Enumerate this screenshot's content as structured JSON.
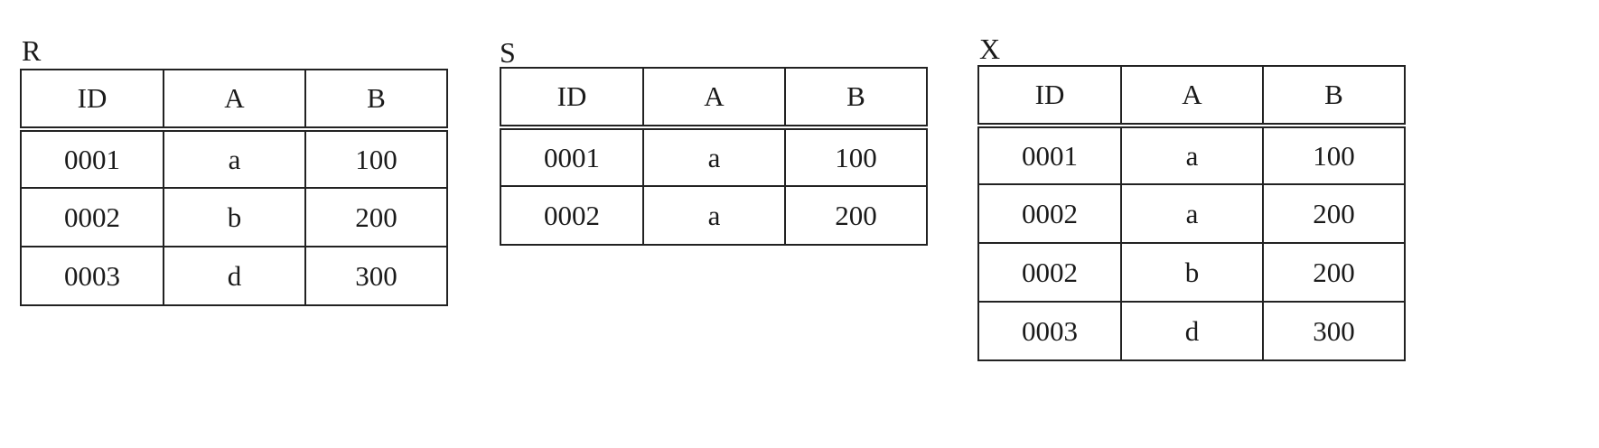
{
  "tables": [
    {
      "name": "R",
      "headers": [
        "ID",
        "A",
        "B"
      ],
      "rows": [
        [
          "0001",
          "a",
          "100"
        ],
        [
          "0002",
          "b",
          "200"
        ],
        [
          "0003",
          "d",
          "300"
        ]
      ]
    },
    {
      "name": "S",
      "headers": [
        "ID",
        "A",
        "B"
      ],
      "rows": [
        [
          "0001",
          "a",
          "100"
        ],
        [
          "0002",
          "a",
          "200"
        ]
      ]
    },
    {
      "name": "X",
      "headers": [
        "ID",
        "A",
        "B"
      ],
      "rows": [
        [
          "0001",
          "a",
          "100"
        ],
        [
          "0002",
          "a",
          "200"
        ],
        [
          "0002",
          "b",
          "200"
        ],
        [
          "0003",
          "d",
          "300"
        ]
      ]
    }
  ]
}
